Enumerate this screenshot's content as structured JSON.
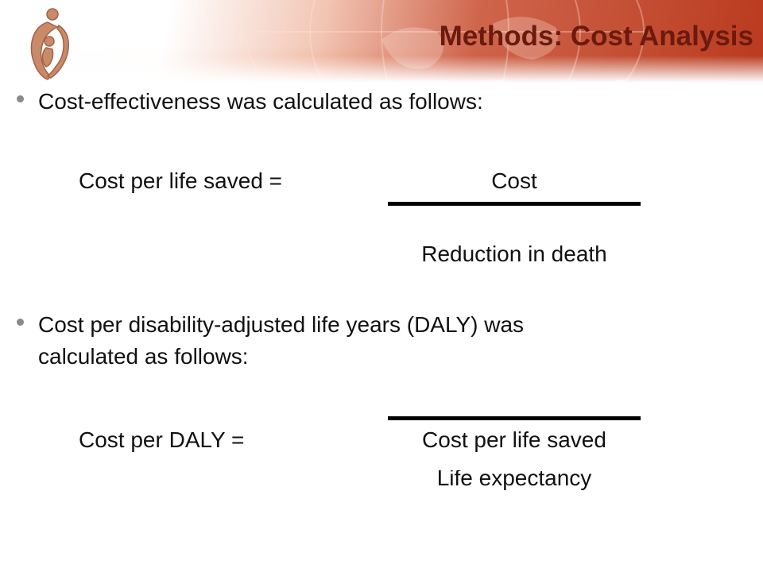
{
  "slide": {
    "title": "Methods: Cost Analysis",
    "bullets": [
      {
        "text": "Cost-effectiveness was calculated as follows:"
      },
      {
        "line1": "Cost per disability-adjusted life years (DALY) was",
        "line2": "calculated as follows:"
      }
    ],
    "formula1": {
      "lhs": "Cost per life saved =",
      "numerator": "Cost",
      "denominator": "Reduction in death"
    },
    "formula2": {
      "lhs": "Cost per DALY =",
      "numerator": "Cost per life saved",
      "denominator": "Life expectancy"
    }
  },
  "colors": {
    "title": "#6b1a0e",
    "header_band": "#ba3a1e",
    "bullet": "#8a8a8a",
    "text": "#111111"
  }
}
